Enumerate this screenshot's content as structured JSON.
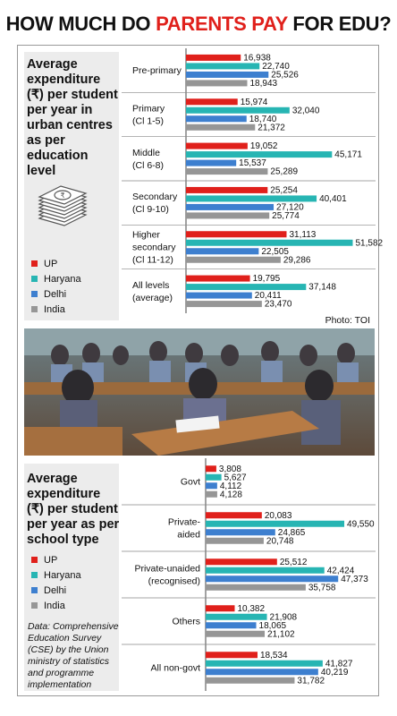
{
  "headline": {
    "part1": "HOW MUCH DO ",
    "accent": "PARENTS PAY",
    "part2": " FOR EDU?"
  },
  "colors": {
    "UP": "#e0201b",
    "Haryana": "#27b5b3",
    "Delhi": "#3d7fcf",
    "India": "#969696",
    "panel": "#ececec"
  },
  "panel1": {
    "title_lines": [
      "Average",
      "expenditure",
      "(₹) per student",
      "per year in",
      "urban centres",
      "as per",
      "education level"
    ]
  },
  "panel2": {
    "title_lines": [
      "Average",
      "expenditure",
      "(₹) per student",
      "per year as per",
      "school type"
    ]
  },
  "legend": [
    "UP",
    "Haryana",
    "Delhi",
    "India"
  ],
  "photo_credit": "Photo: TOI",
  "source_lines": [
    "Data: Comprehensive",
    "Education Survey",
    "(CSE) by the Union",
    "ministry of statistics",
    "and programme",
    "implementation"
  ],
  "chart_data": [
    {
      "type": "bar",
      "orientation": "horizontal",
      "categories": [
        [
          "Pre-primary"
        ],
        [
          "Primary",
          "(Cl 1-5)"
        ],
        [
          "Middle",
          "(Cl 6-8)"
        ],
        [
          "Secondary",
          "(Cl 9-10)"
        ],
        [
          "Higher",
          "secondary",
          "(Cl 11-12)"
        ],
        [
          "All levels",
          "(average)"
        ]
      ],
      "series": [
        {
          "name": "UP",
          "values": [
            16938,
            15974,
            19052,
            25254,
            31113,
            19795
          ],
          "labels": [
            "16,938",
            "15,974",
            "19,052",
            "25,254",
            "31,113",
            "19,795"
          ]
        },
        {
          "name": "Haryana",
          "values": [
            22740,
            32040,
            45171,
            40401,
            51582,
            37148
          ],
          "labels": [
            "22,740",
            "32,040",
            "45,171",
            "40,401",
            "51,582",
            "37,148"
          ]
        },
        {
          "name": "Delhi",
          "values": [
            25526,
            18740,
            15537,
            27120,
            22505,
            20411
          ],
          "labels": [
            "25,526",
            "18,740",
            "15,537",
            "27,120",
            "22,505",
            "20,411"
          ]
        },
        {
          "name": "India",
          "values": [
            18943,
            21372,
            25289,
            25774,
            29286,
            23470
          ],
          "labels": [
            "18,943",
            "21,372",
            "25,289",
            "25,774",
            "29,286",
            "23,470"
          ]
        }
      ]
    },
    {
      "type": "bar",
      "orientation": "horizontal",
      "categories": [
        [
          "Govt"
        ],
        [
          "Private-",
          "aided"
        ],
        [
          "Private-unaided",
          "(recognised)"
        ],
        [
          "Others"
        ],
        [
          "All non-govt"
        ]
      ],
      "series": [
        {
          "name": "UP",
          "values": [
            3808,
            20083,
            25512,
            10382,
            18534
          ],
          "labels": [
            "3,808",
            "20,083",
            "25,512",
            "10,382",
            "18,534"
          ]
        },
        {
          "name": "Haryana",
          "values": [
            5627,
            49550,
            42424,
            21908,
            41827
          ],
          "labels": [
            "5,627",
            "49,550",
            "42,424",
            "21,908",
            "41,827"
          ]
        },
        {
          "name": "Delhi",
          "values": [
            4112,
            24865,
            47373,
            18065,
            40219
          ],
          "labels": [
            "4,112",
            "24,865",
            "47,373",
            "18,065",
            "40,219"
          ]
        },
        {
          "name": "India",
          "values": [
            4128,
            20748,
            35758,
            21102,
            31782
          ],
          "labels": [
            "4,128",
            "20,748",
            "35,758",
            "21,102",
            "31,782"
          ]
        }
      ]
    }
  ]
}
